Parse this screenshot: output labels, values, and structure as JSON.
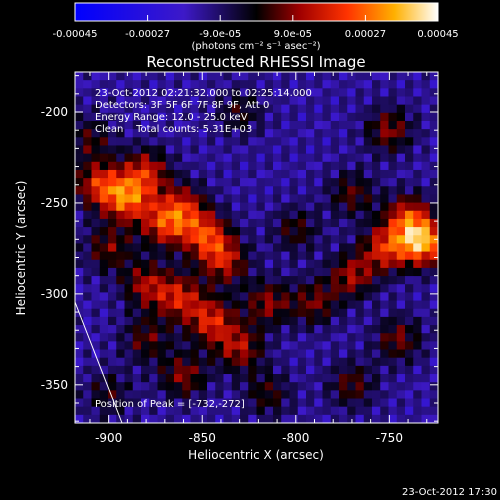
{
  "chart_data": {
    "type": "heatmap",
    "title": "Reconstructed RHESSI Image",
    "xlabel": "Heliocentric X (arcsec)",
    "ylabel": "Heliocentric Y (arcsec)",
    "xlim": [
      -918,
      -724
    ],
    "ylim": [
      -371,
      -178
    ],
    "x_ticks": [
      -900,
      -850,
      -800,
      -750
    ],
    "y_ticks": [
      -350,
      -300,
      -250,
      -200
    ],
    "colorbar": {
      "range": [
        -0.00045,
        0.00045
      ],
      "tick_values": [
        -0.00045,
        -0.00027,
        -9e-05,
        9e-05,
        0.00027,
        0.00045
      ],
      "tick_labels": [
        "-0.00045",
        "-0.00027",
        "-9.0e-05",
        "9.0e-05",
        "0.00027",
        "0.00045"
      ],
      "unit_label": "(photons cm⁻² s⁻¹ asec⁻²)"
    },
    "annotations": [
      "23-Oct-2012 02:21:32.000 to 02:25:14.000",
      "Detectors: 3F 5F 6F 7F 8F 9F, Att 0",
      "Energy Range: 12.0 - 25.0 keV",
      "Clean    Total counts: 5.31E+03"
    ],
    "peak_label": "Position of Peak = [-732,-272]",
    "peak_position": [
      -732,
      -272
    ],
    "timestamp": "23-Oct-2012 17:30",
    "blobs": [
      {
        "x": -905,
        "y": -240,
        "v": 0.0003
      },
      {
        "x": -890,
        "y": -248,
        "v": 0.00036
      },
      {
        "x": -880,
        "y": -233,
        "v": 0.00028
      },
      {
        "x": -870,
        "y": -262,
        "v": 0.0003
      },
      {
        "x": -860,
        "y": -252,
        "v": 0.00025
      },
      {
        "x": -848,
        "y": -268,
        "v": 0.00032
      },
      {
        "x": -838,
        "y": -282,
        "v": 0.00027
      },
      {
        "x": -900,
        "y": -275,
        "v": 0.0002
      },
      {
        "x": -880,
        "y": -295,
        "v": 0.00024
      },
      {
        "x": -862,
        "y": -302,
        "v": 0.00028
      },
      {
        "x": -845,
        "y": -315,
        "v": 0.0003
      },
      {
        "x": -830,
        "y": -330,
        "v": 0.00025
      },
      {
        "x": -815,
        "y": -305,
        "v": 0.00022
      },
      {
        "x": -880,
        "y": -325,
        "v": 0.00018
      },
      {
        "x": -860,
        "y": -345,
        "v": 0.00022
      },
      {
        "x": -910,
        "y": -215,
        "v": 0.00016
      },
      {
        "x": -830,
        "y": -200,
        "v": 0.00014
      },
      {
        "x": -800,
        "y": -265,
        "v": 0.00016
      },
      {
        "x": -790,
        "y": -305,
        "v": 0.0002
      },
      {
        "x": -770,
        "y": -290,
        "v": 0.00024
      },
      {
        "x": -752,
        "y": -275,
        "v": 0.0003
      },
      {
        "x": -732,
        "y": -272,
        "v": 0.00045
      },
      {
        "x": -740,
        "y": -258,
        "v": 0.0003
      },
      {
        "x": -750,
        "y": -210,
        "v": 0.00022
      },
      {
        "x": -770,
        "y": -245,
        "v": 0.00018
      },
      {
        "x": -745,
        "y": -325,
        "v": 0.0002
      },
      {
        "x": -770,
        "y": -350,
        "v": 0.00018
      },
      {
        "x": -815,
        "y": -355,
        "v": 0.00016
      },
      {
        "x": -900,
        "y": -355,
        "v": 0.00014
      }
    ]
  }
}
